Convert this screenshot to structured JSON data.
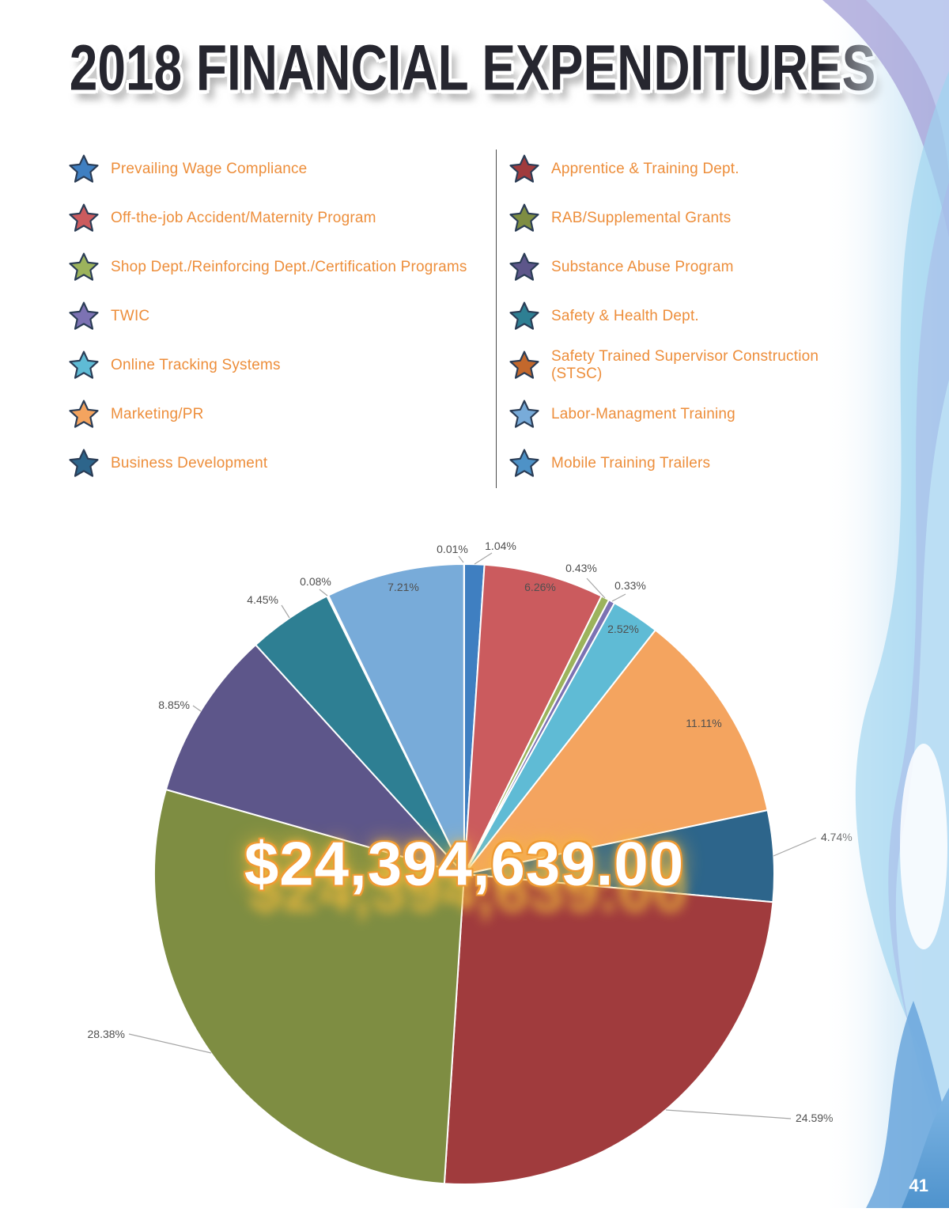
{
  "page": {
    "title": "2018 FINANCIAL EXPENDITURES",
    "page_number": "41"
  },
  "chart_data": {
    "type": "pie",
    "title": "2018 Financial Expenditures",
    "center_label": "$24,394,639.00",
    "legend_position": "top",
    "slices": [
      {
        "label": "Prevailing Wage Compliance",
        "value": 1.04,
        "color": "#3f7fc1"
      },
      {
        "label": "Off-the-job Accident/Maternity Program",
        "value": 6.26,
        "color": "#cb5b5e"
      },
      {
        "label": "Shop Dept./Reinforcing Dept./Certification Programs",
        "value": 0.43,
        "color": "#9cb35c"
      },
      {
        "label": "TWIC",
        "value": 0.33,
        "color": "#7c72b3"
      },
      {
        "label": "Online Tracking Systems",
        "value": 2.52,
        "color": "#5fbbd5"
      },
      {
        "label": "Marketing/PR",
        "value": 11.11,
        "color": "#f4a45f"
      },
      {
        "label": "Business Development",
        "value": 4.74,
        "color": "#2d658b"
      },
      {
        "label": "Apprentice & Training Dept.",
        "value": 24.59,
        "color": "#a03b3d"
      },
      {
        "label": "RAB/Supplemental Grants",
        "value": 28.38,
        "color": "#7e8d42"
      },
      {
        "label": "Substance Abuse Program",
        "value": 8.85,
        "color": "#5d568a"
      },
      {
        "label": "Safety & Health Dept.",
        "value": 4.45,
        "color": "#2e7f93"
      },
      {
        "label": "Safety Trained Supervisor Construction (STSC)",
        "value": 0.08,
        "color": "#c3682c"
      },
      {
        "label": "Labor-Managment Training",
        "value": 7.21,
        "color": "#78abd9"
      },
      {
        "label": "Mobile Training Trailers",
        "value": 0.01,
        "color": "#4e92c7"
      }
    ]
  }
}
